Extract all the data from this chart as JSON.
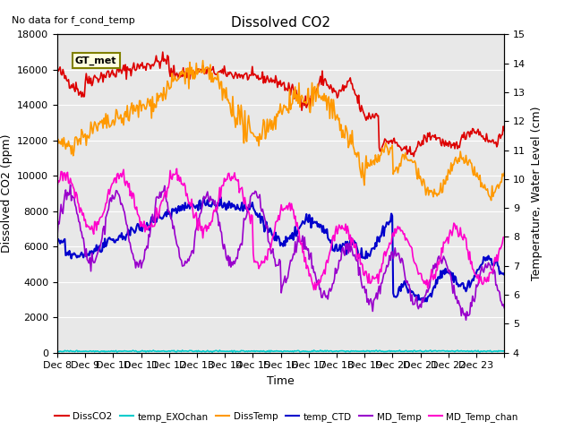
{
  "title": "Dissolved CO2",
  "no_data_text": "No data for f_cond_temp",
  "gt_met_label": "GT_met",
  "ylabel_left": "Dissolved CO2 (ppm)",
  "ylabel_right": "Temperature, Water Level (cm)",
  "xlabel": "Time",
  "ylim_left": [
    0,
    18000
  ],
  "ylim_right": [
    4.0,
    15.0
  ],
  "yticks_left": [
    0,
    2000,
    4000,
    6000,
    8000,
    10000,
    12000,
    14000,
    16000,
    18000
  ],
  "yticks_right": [
    4.0,
    5.0,
    6.0,
    7.0,
    8.0,
    9.0,
    10.0,
    11.0,
    12.0,
    13.0,
    14.0,
    15.0
  ],
  "xtick_positions": [
    0,
    1,
    2,
    3,
    4,
    5,
    6,
    7,
    8,
    9,
    10,
    11,
    12,
    13,
    14,
    15,
    16
  ],
  "xtick_labels": [
    "Dec 8",
    "Dec 9",
    "Dec 10",
    "Dec 11",
    "Dec 12",
    "Dec 13",
    "Dec 14",
    "Dec 15",
    "Dec 16",
    "Dec 17",
    "Dec 18",
    "Dec 19",
    "Dec 20",
    "Dec 21",
    "Dec 22",
    "Dec 23",
    ""
  ],
  "colors": {
    "DissCO2": "#dd0000",
    "temp_EXOchan": "#00cccc",
    "DissTemp": "#ff9900",
    "temp_CTD": "#0000cc",
    "MD_Temp": "#9900cc",
    "MD_Temp_chan": "#ff00cc"
  },
  "bg_color": "#e8e8e8",
  "grid_color": "#ffffff"
}
